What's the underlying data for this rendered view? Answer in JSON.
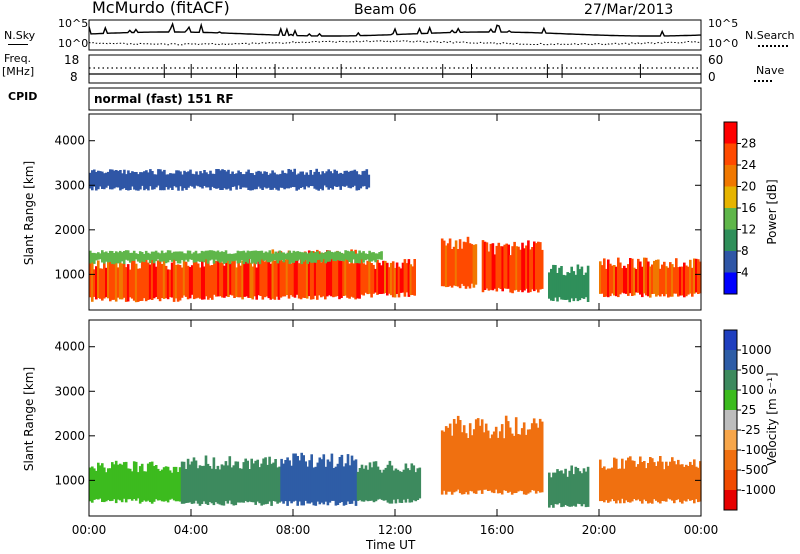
{
  "header": {
    "station": "McMurdo (fitACF)",
    "beam": "Beam 06",
    "date": "27/Mar/2013"
  },
  "top_panels": {
    "nsky_label": "N.Sky",
    "nsky_ticks": [
      "10^5",
      "10^0"
    ],
    "nsearch_label": "N.Search",
    "nsearch_ticks": [
      "10^5",
      "10^0"
    ],
    "freq_label_1": "Freq.",
    "freq_label_2": "[MHz]",
    "freq_ticks": [
      "18",
      "8"
    ],
    "nave_label": "Nave",
    "nave_ticks": [
      "60",
      "0"
    ],
    "cpid_label": "CPID",
    "cpid_value": "normal (fast) 151 RF"
  },
  "colors": {
    "power_scale": [
      "#0000ff",
      "#2f56a6",
      "#2f8f5a",
      "#5fb64a",
      "#e6b400",
      "#f07800",
      "#ff4a00",
      "#ff0000"
    ],
    "velocity_scale": [
      "#1f3fbf",
      "#2e5da6",
      "#3d8a5e",
      "#3cbb1e",
      "#bdbdbd",
      "#f7a64a",
      "#f07010",
      "#f04a00",
      "#e60000"
    ]
  },
  "chart_data": [
    {
      "type": "heatmap",
      "panel": "power",
      "ylabel": "Slant Range [km]",
      "y_ticks": [
        "1000",
        "2000",
        "3000",
        "4000"
      ],
      "ylim": [
        200,
        4600
      ],
      "x_ticks": [
        "00:00",
        "04:00",
        "08:00",
        "12:00",
        "16:00",
        "20:00",
        "00:00"
      ],
      "xlim_hours": [
        0,
        24
      ],
      "colorbar_label": "Power [dB]",
      "colorbar_ticks": [
        "4",
        "8",
        "12",
        "16",
        "20",
        "24",
        "28"
      ],
      "regions": [
        {
          "t0": 0.0,
          "t1": 3.6,
          "r0": 400,
          "r1": 1250,
          "value": 26
        },
        {
          "t0": 3.6,
          "t1": 7.0,
          "r0": 450,
          "r1": 1300,
          "value": 27
        },
        {
          "t0": 7.0,
          "t1": 10.8,
          "r0": 450,
          "r1": 1400,
          "value": 27
        },
        {
          "t0": 10.8,
          "t1": 12.8,
          "r0": 500,
          "r1": 1250,
          "value": 26
        },
        {
          "t0": 13.8,
          "t1": 15.2,
          "r0": 700,
          "r1": 1700,
          "value": 25
        },
        {
          "t0": 15.4,
          "t1": 17.8,
          "r0": 600,
          "r1": 1600,
          "value": 27
        },
        {
          "t0": 18.0,
          "t1": 19.6,
          "r0": 400,
          "r1": 1100,
          "value": 10
        },
        {
          "t0": 20.0,
          "t1": 24.0,
          "r0": 500,
          "r1": 1250,
          "value": 26
        },
        {
          "t0": 0.0,
          "t1": 11.5,
          "r0": 1250,
          "r1": 1500,
          "value": 14
        },
        {
          "t0": 0.0,
          "t1": 11.0,
          "r0": 2900,
          "r1": 3300,
          "value": 7
        }
      ]
    },
    {
      "type": "heatmap",
      "panel": "velocity",
      "ylabel": "Slant Range [km]",
      "y_ticks": [
        "1000",
        "2000",
        "3000",
        "4000"
      ],
      "ylim": [
        200,
        4600
      ],
      "x_ticks": [
        "00:00",
        "04:00",
        "08:00",
        "12:00",
        "16:00",
        "20:00",
        "00:00"
      ],
      "xlim_hours": [
        0,
        24
      ],
      "xlabel": "Time UT",
      "colorbar_label": "Velocity [m s⁻¹]",
      "colorbar_ticks": [
        "1000",
        "500",
        "100",
        "25",
        "-25",
        "-100",
        "-500",
        "-1000"
      ],
      "regions": [
        {
          "t0": 0.0,
          "t1": 3.6,
          "r0": 500,
          "r1": 1300,
          "value": 30
        },
        {
          "t0": 3.6,
          "t1": 7.5,
          "r0": 450,
          "r1": 1400,
          "value": 150
        },
        {
          "t0": 7.5,
          "t1": 10.5,
          "r0": 450,
          "r1": 1450,
          "value": 800
        },
        {
          "t0": 10.5,
          "t1": 13.0,
          "r0": 500,
          "r1": 1300,
          "value": 150
        },
        {
          "t0": 13.8,
          "t1": 17.8,
          "r0": 700,
          "r1": 2200,
          "value": -400
        },
        {
          "t0": 18.0,
          "t1": 19.6,
          "r0": 400,
          "r1": 1200,
          "value": 120
        },
        {
          "t0": 20.0,
          "t1": 24.0,
          "r0": 500,
          "r1": 1400,
          "value": -200
        }
      ]
    }
  ]
}
